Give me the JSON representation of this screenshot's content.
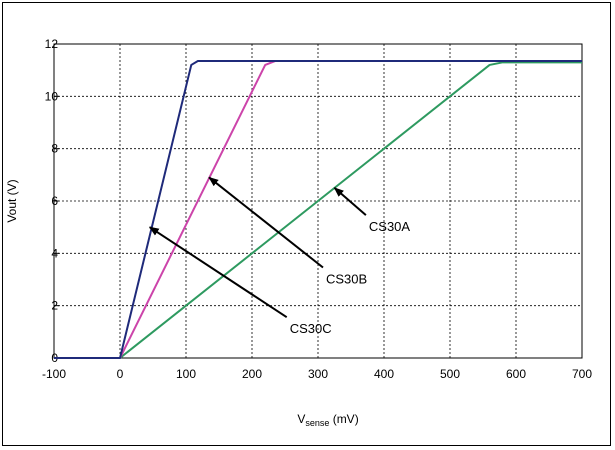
{
  "chart_data": {
    "type": "line",
    "title": "",
    "xlabel": {
      "main": "V",
      "sub": "sense",
      "unit": " (mV)"
    },
    "ylabel": "Vout (V)",
    "xlim": [
      -100,
      700
    ],
    "ylim": [
      0,
      12
    ],
    "xticks": [
      "-100",
      "0",
      "100",
      "200",
      "300",
      "400",
      "500",
      "600",
      "700"
    ],
    "yticks": [
      "0",
      "2",
      "4",
      "6",
      "8",
      "10",
      "12"
    ],
    "grid": true,
    "series": [
      {
        "name": "CS30A",
        "color": "#2e9a60",
        "x": [
          -100,
          0,
          560,
          580,
          700
        ],
        "y": [
          0,
          0,
          11.2,
          11.3,
          11.3
        ]
      },
      {
        "name": "CS30B",
        "color": "#cc44aa",
        "x": [
          -100,
          0,
          220,
          235,
          250
        ],
        "y": [
          0,
          0,
          11.2,
          11.35,
          11.35
        ]
      },
      {
        "name": "CS30C",
        "color": "#1f2a7a",
        "x": [
          -100,
          0,
          108,
          118,
          700
        ],
        "y": [
          0,
          0,
          11.2,
          11.35,
          11.35
        ]
      }
    ],
    "annotations": [
      {
        "text": "CS30A",
        "x": 365,
        "y": 5.0,
        "arrow_to": [
          325,
          6.5
        ]
      },
      {
        "text": "CS30B",
        "x": 300,
        "y": 3.0,
        "arrow_to": [
          135,
          6.9
        ]
      },
      {
        "text": "CS30C",
        "x": 245,
        "y": 1.1,
        "arrow_to": [
          45,
          5.0
        ]
      }
    ]
  }
}
